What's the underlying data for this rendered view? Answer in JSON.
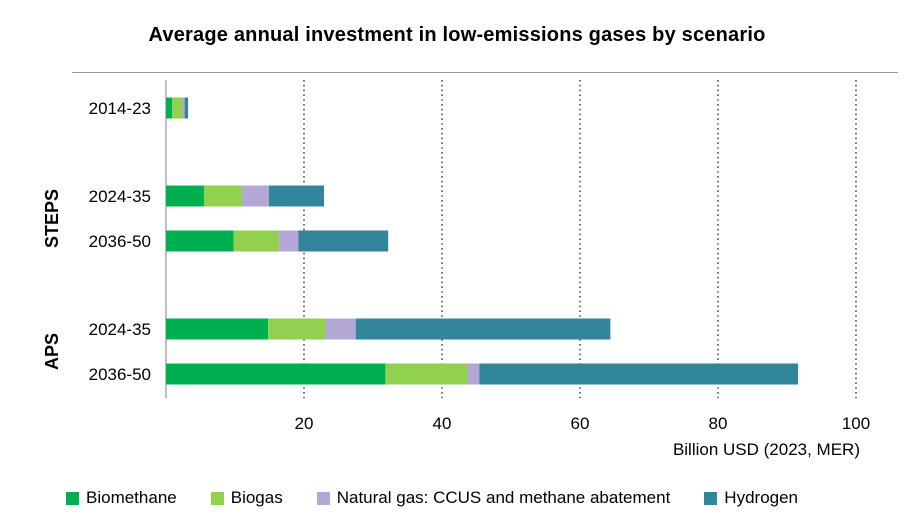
{
  "chart_data": {
    "type": "bar",
    "orientation": "horizontal",
    "stacked": true,
    "title": "Average annual investment in low-emissions gases by scenario",
    "xlabel": "Billion USD (2023, MER)",
    "xlim": [
      0,
      100
    ],
    "xticks": [
      20,
      40,
      60,
      80,
      100
    ],
    "grid": "vertical-dotted",
    "legend_position": "bottom",
    "groups": [
      {
        "label": "",
        "categories": [
          "2014-23"
        ]
      },
      {
        "label": "STEPS",
        "categories": [
          "2024-35",
          "2036-50"
        ]
      },
      {
        "label": "APS",
        "categories": [
          "2024-35",
          "2036-50"
        ]
      }
    ],
    "categories": [
      "2014-23",
      "2024-35",
      "2036-50",
      "2024-35",
      "2036-50"
    ],
    "series": [
      {
        "name": "Biomethane",
        "color": "#00b050",
        "values": [
          0.9,
          5.5,
          9.8,
          14.8,
          31.8
        ]
      },
      {
        "name": "Biogas",
        "color": "#92d050",
        "values": [
          1.5,
          5.5,
          6.6,
          8.3,
          11.9
        ]
      },
      {
        "name": "Natural gas: CCUS and methane abatement",
        "color": "#b4a7d6",
        "values": [
          0.3,
          3.9,
          2.8,
          4.4,
          1.7
        ]
      },
      {
        "name": "Hydrogen",
        "color": "#31869b",
        "values": [
          0.5,
          8.0,
          13.0,
          36.9,
          46.2
        ]
      }
    ]
  }
}
